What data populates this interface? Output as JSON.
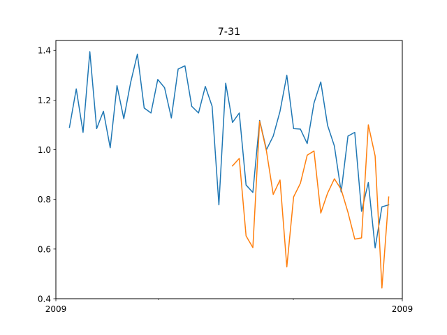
{
  "chart_data": {
    "type": "line",
    "title": "7-31",
    "xlabel": "",
    "ylabel": "",
    "x_tick_labels": [
      "2009",
      "2009"
    ],
    "y_ticks": [
      0.4,
      0.6,
      0.8,
      1.0,
      1.2,
      1.4
    ],
    "y_tick_labels": [
      "0.4",
      "0.6",
      "0.8",
      "1.0",
      "1.2",
      "1.4"
    ],
    "xlim": [
      -2,
      49
    ],
    "ylim": [
      0.4,
      1.44
    ],
    "grid": false,
    "legend": "none",
    "series": [
      {
        "color": "#1f77b4",
        "x": [
          0,
          1,
          2,
          3,
          4,
          5,
          6,
          7,
          8,
          9,
          10,
          11,
          12,
          13,
          14,
          15,
          16,
          17,
          18,
          19,
          20,
          21,
          22,
          23,
          24,
          25,
          26,
          27,
          28,
          29,
          30,
          31,
          32,
          33,
          34,
          35,
          36,
          37,
          38,
          39,
          40,
          41,
          42,
          43,
          44,
          45,
          46,
          47
        ],
        "values": [
          1.09,
          1.245,
          1.07,
          1.395,
          1.085,
          1.155,
          1.008,
          1.258,
          1.125,
          1.27,
          1.385,
          1.168,
          1.148,
          1.283,
          1.25,
          1.128,
          1.325,
          1.338,
          1.175,
          1.148,
          1.255,
          1.175,
          0.778,
          1.268,
          1.11,
          1.148,
          0.858,
          0.828,
          1.118,
          1.0,
          1.055,
          1.155,
          1.3,
          1.085,
          1.083,
          1.025,
          1.188,
          1.273,
          1.098,
          1.015,
          0.83,
          1.055,
          1.07,
          0.752,
          0.868,
          0.605,
          0.77,
          0.778
        ]
      },
      {
        "color": "#ff7f0e",
        "x": [
          24,
          25,
          26,
          27,
          28,
          29,
          30,
          31,
          32,
          33,
          34,
          35,
          36,
          37,
          38,
          39,
          40,
          41,
          42,
          43,
          44,
          45,
          46,
          47
        ],
        "values": [
          0.935,
          0.965,
          0.653,
          0.606,
          1.115,
          0.995,
          0.82,
          0.878,
          0.528,
          0.81,
          0.865,
          0.978,
          0.995,
          0.745,
          0.825,
          0.883,
          0.84,
          0.748,
          0.64,
          0.645,
          1.1,
          0.975,
          0.443,
          0.81
        ]
      }
    ]
  }
}
